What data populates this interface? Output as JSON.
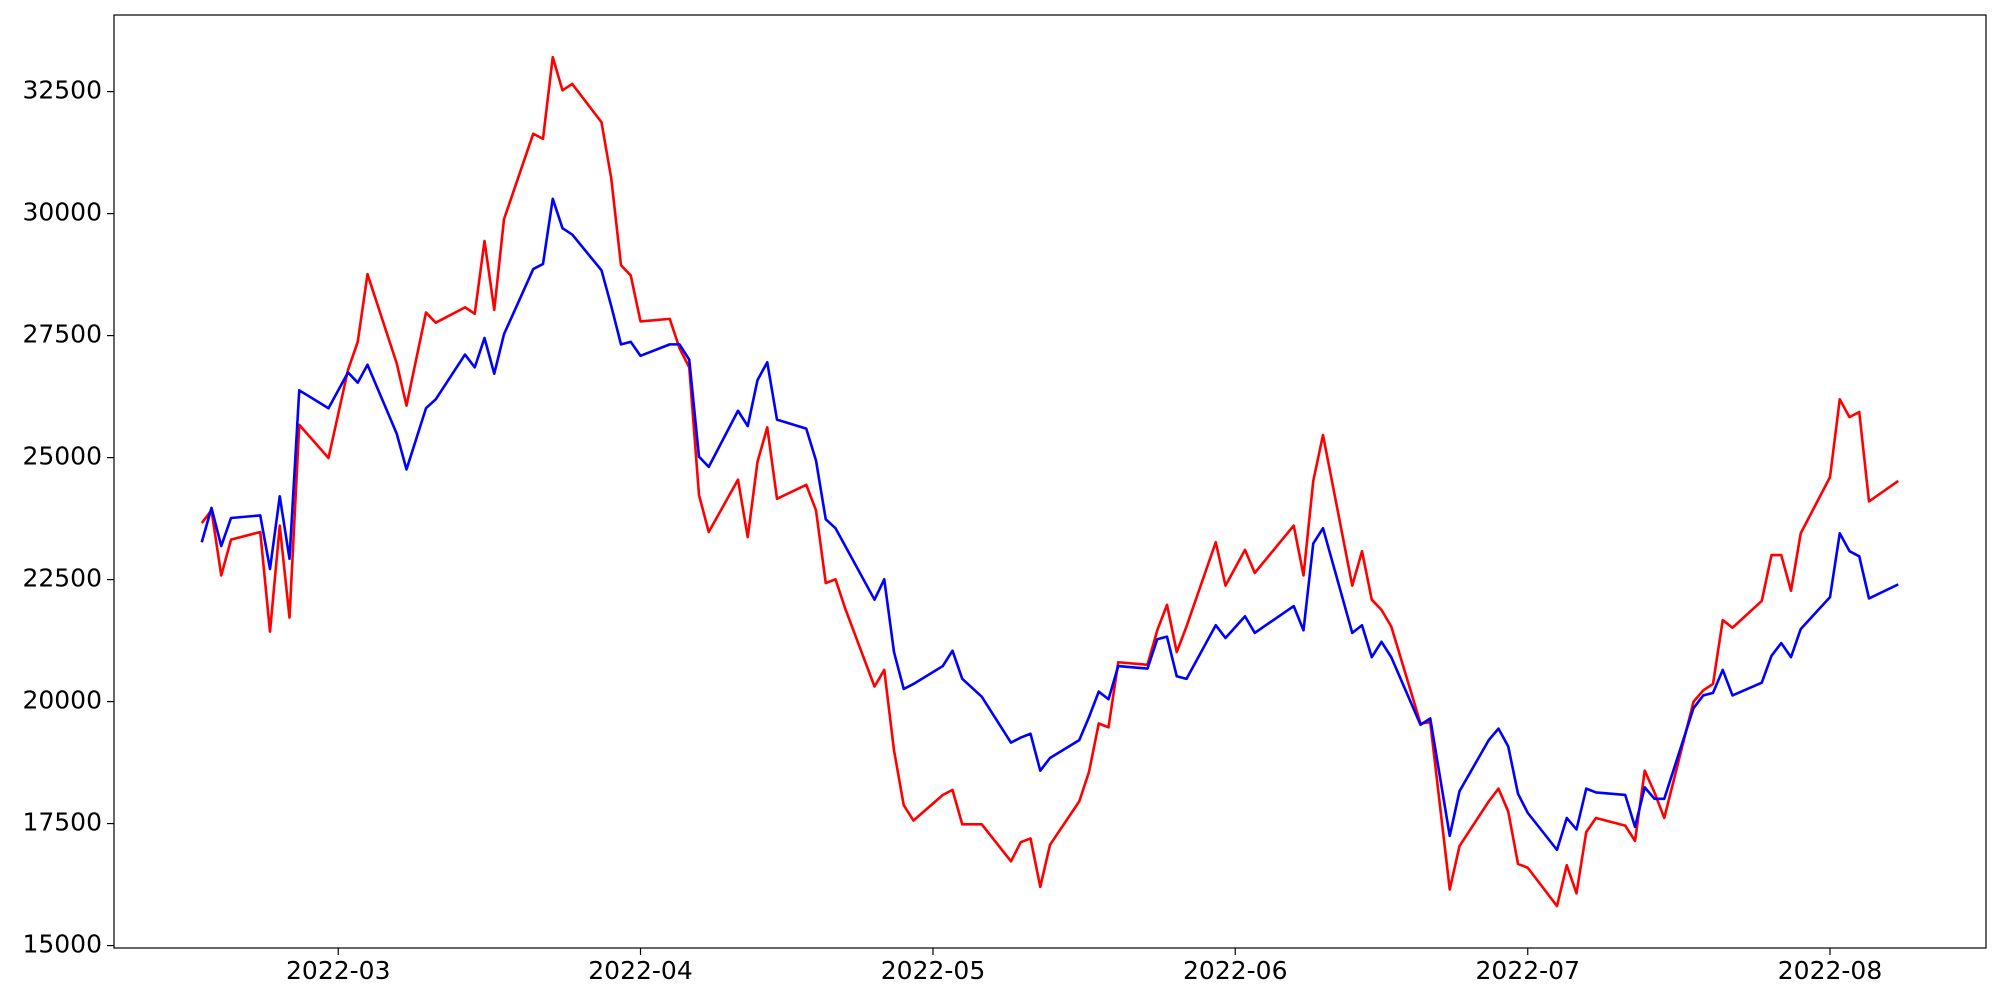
{
  "chart_data": {
    "type": "line",
    "x": [
      "2022-02-15",
      "2022-02-16",
      "2022-02-17",
      "2022-02-18",
      "2022-02-21",
      "2022-02-22",
      "2022-02-23",
      "2022-02-24",
      "2022-02-25",
      "2022-02-28",
      "2022-03-02",
      "2022-03-03",
      "2022-03-04",
      "2022-03-07",
      "2022-03-08",
      "2022-03-10",
      "2022-03-11",
      "2022-03-14",
      "2022-03-15",
      "2022-03-16",
      "2022-03-17",
      "2022-03-18",
      "2022-03-21",
      "2022-03-22",
      "2022-03-23",
      "2022-03-24",
      "2022-03-25",
      "2022-03-28",
      "2022-03-29",
      "2022-03-30",
      "2022-03-31",
      "2022-04-01",
      "2022-04-04",
      "2022-04-05",
      "2022-04-06",
      "2022-04-07",
      "2022-04-08",
      "2022-04-11",
      "2022-04-12",
      "2022-04-13",
      "2022-04-14",
      "2022-04-15",
      "2022-04-18",
      "2022-04-19",
      "2022-04-20",
      "2022-04-21",
      "2022-04-22",
      "2022-04-25",
      "2022-04-26",
      "2022-04-27",
      "2022-04-28",
      "2022-04-29",
      "2022-05-02",
      "2022-05-03",
      "2022-05-04",
      "2022-05-06",
      "2022-05-09",
      "2022-05-10",
      "2022-05-11",
      "2022-05-12",
      "2022-05-13",
      "2022-05-16",
      "2022-05-17",
      "2022-05-18",
      "2022-05-19",
      "2022-05-20",
      "2022-05-23",
      "2022-05-24",
      "2022-05-25",
      "2022-05-26",
      "2022-05-27",
      "2022-05-30",
      "2022-05-31",
      "2022-06-02",
      "2022-06-03",
      "2022-06-07",
      "2022-06-08",
      "2022-06-09",
      "2022-06-10",
      "2022-06-13",
      "2022-06-14",
      "2022-06-15",
      "2022-06-16",
      "2022-06-17",
      "2022-06-20",
      "2022-06-21",
      "2022-06-23",
      "2022-06-24",
      "2022-06-27",
      "2022-06-28",
      "2022-06-29",
      "2022-06-30",
      "2022-07-01",
      "2022-07-04",
      "2022-07-05",
      "2022-07-06",
      "2022-07-07",
      "2022-07-08",
      "2022-07-11",
      "2022-07-12",
      "2022-07-13",
      "2022-07-14",
      "2022-07-15",
      "2022-07-18",
      "2022-07-19",
      "2022-07-20",
      "2022-07-21",
      "2022-07-22",
      "2022-07-25",
      "2022-07-26",
      "2022-07-27",
      "2022-07-28",
      "2022-07-29",
      "2022-08-01",
      "2022-08-02",
      "2022-08-03",
      "2022-08-04",
      "2022-08-05",
      "2022-08-08"
    ],
    "series": [
      {
        "color": "#ff0000",
        "values": [
          23658,
          23920,
          22585,
          23318,
          23475,
          21434,
          23606,
          21722,
          25672,
          24992,
          26797,
          27372,
          28759,
          26928,
          26065,
          27974,
          27765,
          28079,
          27948,
          29439,
          28027,
          29884,
          31637,
          31532,
          33206,
          32526,
          32657,
          31872,
          30721,
          28942,
          28733,
          27791,
          27843,
          27242,
          26849,
          24233,
          23475,
          24547,
          23370,
          24913,
          25620,
          24155,
          24443,
          23920,
          22429,
          22506,
          21905,
          20309,
          20649,
          19001,
          17876,
          17562,
          18086,
          18190,
          17484,
          17484,
          16726,
          17118,
          17196,
          16202,
          17065,
          17955,
          18557,
          19551,
          19472,
          20806,
          20754,
          21460,
          21983,
          21015,
          21539,
          23265,
          22376,
          23108,
          22637,
          23606,
          22585,
          24521,
          25463,
          22376,
          23082,
          22088,
          21879,
          21539,
          19551,
          19577,
          16150,
          17039,
          17955,
          18216,
          17746,
          16673,
          16595,
          15810,
          16647,
          16071,
          17327,
          17615,
          17458,
          17144,
          18583,
          18138,
          17615,
          19996,
          20231,
          20361,
          21670,
          21513,
          22062,
          23003,
          23003,
          22271,
          23449,
          24600,
          26195,
          25829,
          25934,
          24102,
          24521
        ]
      },
      {
        "color": "#0000ff",
        "values": [
          23265,
          23970,
          23187,
          23762,
          23815,
          22716,
          24207,
          22925,
          26379,
          26012,
          26745,
          26535,
          26902,
          25489,
          24757,
          26012,
          26195,
          27111,
          26849,
          27451,
          26719,
          27529,
          28864,
          28968,
          30303,
          29701,
          29570,
          28838,
          28105,
          27320,
          27372,
          27085,
          27320,
          27320,
          27006,
          25018,
          24809,
          25960,
          25646,
          26588,
          26954,
          25777,
          25594,
          24940,
          23736,
          23553,
          23187,
          22088,
          22506,
          21015,
          20257,
          20361,
          20728,
          21042,
          20466,
          20100,
          19158,
          19263,
          19341,
          18583,
          18844,
          19210,
          19681,
          20204,
          20047,
          20728,
          20675,
          21277,
          21330,
          20518,
          20466,
          21565,
          21303,
          21748,
          21408,
          21957,
          21460,
          23239,
          23553,
          21408,
          21565,
          20911,
          21225,
          20911,
          19525,
          19655,
          17248,
          18164,
          19210,
          19446,
          19080,
          18112,
          17719,
          16961,
          17615,
          17379,
          18216,
          18138,
          18086,
          17432,
          18242,
          18007,
          18007,
          19865,
          20126,
          20178,
          20649,
          20126,
          20388,
          20937,
          21199,
          20911,
          21487,
          22140,
          23449,
          23082,
          22977,
          22114,
          22402
        ]
      }
    ],
    "xlim": [
      "2022-02-06",
      "2022-08-17"
    ],
    "xticks": [
      {
        "value": "2022-03-01",
        "label": "2022-03"
      },
      {
        "value": "2022-04-01",
        "label": "2022-04"
      },
      {
        "value": "2022-05-01",
        "label": "2022-05"
      },
      {
        "value": "2022-06-01",
        "label": "2022-06"
      },
      {
        "value": "2022-07-01",
        "label": "2022-07"
      },
      {
        "value": "2022-08-01",
        "label": "2022-08"
      }
    ],
    "ylim": [
      14950,
      34070
    ],
    "yticks": [
      15000,
      17500,
      20000,
      22500,
      25000,
      27500,
      30000,
      32500
    ],
    "grid": false
  }
}
